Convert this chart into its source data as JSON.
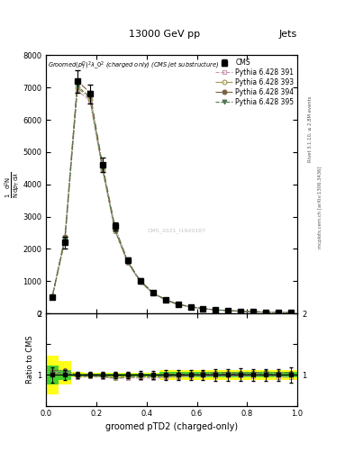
{
  "title_top": "13000 GeV pp",
  "title_right": "Jets",
  "plot_title": "Groomed$(p_T^D)^2\\lambda\\_0^2$ (charged only) (CMS jet substructure)",
  "xlabel": "groomed pTD2 (charged-only)",
  "ylabel_lines": [
    "mathrm d$^2$N",
    "mathrm d$p_T$ mathrm d$\\lambda$"
  ],
  "watermark": "CMS_2021_I1920187",
  "x_data": [
    0.025,
    0.075,
    0.125,
    0.175,
    0.225,
    0.275,
    0.325,
    0.375,
    0.425,
    0.475,
    0.525,
    0.575,
    0.625,
    0.675,
    0.725,
    0.775,
    0.825,
    0.875,
    0.925,
    0.975
  ],
  "cms_y": [
    500,
    2200,
    7200,
    6800,
    4600,
    2700,
    1650,
    1020,
    660,
    430,
    285,
    205,
    150,
    112,
    88,
    68,
    53,
    41,
    32,
    24
  ],
  "cms_yerr": [
    60,
    180,
    350,
    300,
    220,
    130,
    90,
    65,
    45,
    32,
    22,
    16,
    12,
    10,
    8,
    7,
    5,
    4,
    3,
    3
  ],
  "py391_y": [
    520,
    2300,
    6900,
    6600,
    4450,
    2540,
    1570,
    970,
    625,
    412,
    276,
    200,
    148,
    110,
    87,
    67,
    52,
    41,
    31,
    23
  ],
  "py393_y": [
    510,
    2250,
    7000,
    6650,
    4470,
    2560,
    1585,
    985,
    638,
    417,
    279,
    203,
    150,
    112,
    88,
    68,
    53,
    42,
    32,
    24
  ],
  "py394_y": [
    535,
    2370,
    7200,
    6850,
    4600,
    2660,
    1630,
    1015,
    658,
    432,
    289,
    209,
    155,
    116,
    91,
    70,
    55,
    43,
    33,
    25
  ],
  "py395_y": [
    518,
    2290,
    7050,
    6700,
    4500,
    2580,
    1600,
    995,
    643,
    422,
    283,
    205,
    152,
    113,
    89,
    69,
    54,
    42,
    32,
    24
  ],
  "ratio_391": [
    1.04,
    1.045,
    0.958,
    0.971,
    0.967,
    0.941,
    0.952,
    0.951,
    0.947,
    0.958,
    0.968,
    0.976,
    0.987,
    0.982,
    0.989,
    0.985,
    0.981,
    1.0,
    0.969,
    0.958
  ],
  "ratio_393": [
    1.02,
    1.023,
    0.972,
    0.978,
    0.972,
    0.948,
    0.961,
    0.966,
    0.967,
    0.97,
    0.979,
    0.99,
    1.0,
    1.0,
    1.0,
    1.0,
    1.0,
    1.024,
    1.0,
    1.0
  ],
  "ratio_394": [
    1.07,
    1.078,
    1.0,
    1.007,
    1.0,
    0.985,
    0.988,
    0.995,
    0.997,
    1.005,
    1.014,
    1.02,
    1.033,
    1.036,
    1.034,
    1.029,
    1.038,
    1.049,
    1.031,
    1.042
  ],
  "ratio_395": [
    1.036,
    1.041,
    0.979,
    0.985,
    0.978,
    0.956,
    0.97,
    0.975,
    0.974,
    0.981,
    0.993,
    1.0,
    1.013,
    1.009,
    1.011,
    1.015,
    1.019,
    1.024,
    1.0,
    1.0
  ],
  "band_yellow_lo": [
    0.68,
    0.84,
    0.955,
    0.965,
    0.965,
    0.965,
    0.965,
    0.965,
    0.965,
    0.92,
    0.92,
    0.92,
    0.92,
    0.92,
    0.92,
    0.92,
    0.92,
    0.92,
    0.92,
    0.92
  ],
  "band_yellow_hi": [
    1.32,
    1.22,
    1.045,
    1.035,
    1.035,
    1.035,
    1.035,
    1.035,
    1.035,
    1.08,
    1.08,
    1.08,
    1.08,
    1.08,
    1.08,
    1.08,
    1.08,
    1.08,
    1.08,
    1.08
  ],
  "band_green_lo": [
    0.85,
    0.92,
    0.975,
    0.98,
    0.98,
    0.98,
    0.98,
    0.98,
    0.98,
    0.955,
    0.955,
    0.955,
    0.955,
    0.955,
    0.955,
    0.955,
    0.955,
    0.955,
    0.955,
    0.955
  ],
  "band_green_hi": [
    1.15,
    1.08,
    1.025,
    1.02,
    1.02,
    1.02,
    1.02,
    1.02,
    1.02,
    1.045,
    1.045,
    1.045,
    1.045,
    1.045,
    1.045,
    1.045,
    1.045,
    1.045,
    1.045,
    1.045
  ],
  "color_cms": "#000000",
  "color_391": "#c896b4",
  "color_393": "#a09650",
  "color_394": "#786040",
  "color_395": "#507850",
  "marker_391": "s",
  "marker_393": "o",
  "marker_394": "o",
  "marker_395": "v",
  "ls_391": "--",
  "ls_393": "-.",
  "ls_394": "-.",
  "ls_395": "--",
  "ylim_main": [
    0,
    8000
  ],
  "ylim_ratio": [
    0.5,
    2.0
  ],
  "xlim": [
    0.0,
    1.0
  ],
  "yticks_main": [
    0,
    1000,
    2000,
    3000,
    4000,
    5000,
    6000,
    7000,
    8000
  ],
  "yticks_ratio": [
    0.5,
    1.0,
    1.5,
    2.0
  ],
  "ratio_ytick_labels": [
    "",
    "1",
    "",
    "2"
  ]
}
